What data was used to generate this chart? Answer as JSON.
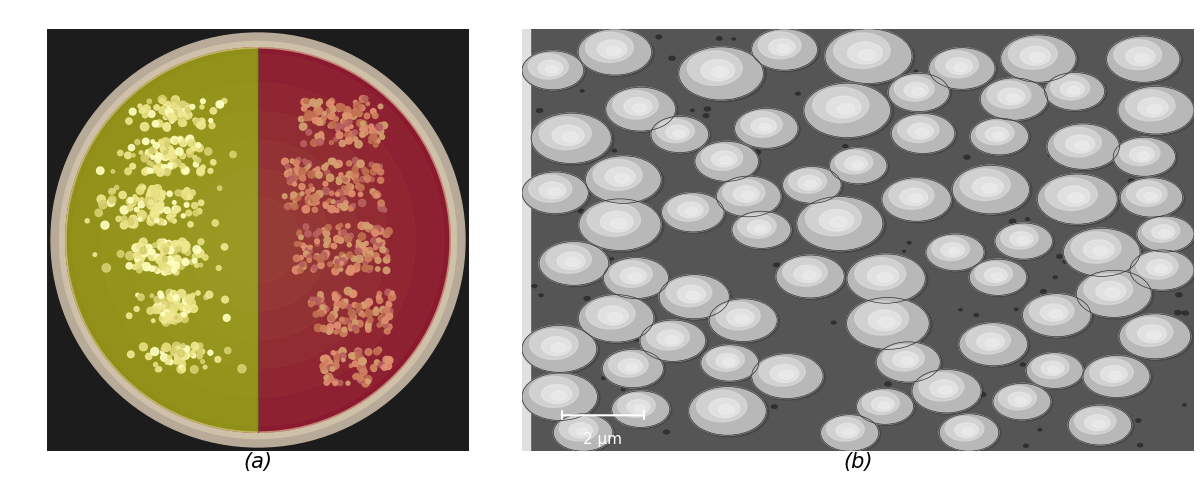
{
  "panel_a_label": "(a)",
  "panel_b_label": "(b)",
  "scale_bar_text": "2 μm",
  "background_color": "#ffffff",
  "label_fontsize": 15,
  "label_color": "#000000",
  "figsize": [
    12.0,
    4.8
  ],
  "dpi": 100,
  "dish_bg": "#1a1a1a",
  "dish_rim_color": "#c8bda8",
  "agar_left_color": "#9a9a20",
  "agar_right_color": "#8b1a30",
  "colony_a_colors": [
    "#f0e890",
    "#e8e080",
    "#d8d070",
    "#ffffc0"
  ],
  "colony_b_colors": [
    "#d08060",
    "#c07050",
    "#e09070",
    "#b86060",
    "#d4a070"
  ],
  "sem_bg_color": "#505050",
  "bacteria_color": "#c0c0c0",
  "bacteria_highlight": "#e8e8e8",
  "bacteria_shadow": "#888888"
}
